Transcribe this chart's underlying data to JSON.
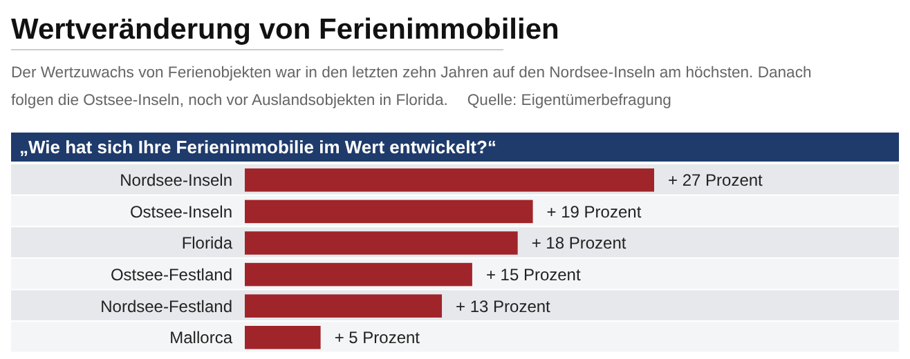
{
  "chart_data": {
    "type": "bar",
    "orientation": "horizontal",
    "title": "Wertveränderung von Ferienimmobilien",
    "subtitle": "Der Wertzuwachs von Ferienobjekten war in den letzten zehn Jahren auf den Nordsee-Inseln am höchsten. Danach folgen die Ostsee-Inseln, noch vor Auslandsobjekten in Florida.",
    "annotations": [
      "Quelle: Eigentümerbefragung",
      "„Wie hat sich Ihre Ferienimmobilie im Wert entwickelt?“"
    ],
    "categories": [
      "Nordsee-Inseln",
      "Ostsee-Inseln",
      "Florida",
      "Ostsee-Festland",
      "Nordsee-Festland",
      "Mallorca"
    ],
    "values": [
      27,
      19,
      18,
      15,
      13,
      5
    ],
    "value_labels": [
      "+ 27 Prozent",
      "+ 19 Prozent",
      "+ 18 Prozent",
      "+ 15 Prozent",
      "+ 13 Prozent",
      "+ 5 Prozent"
    ],
    "color": "#a0252a"
  }
}
